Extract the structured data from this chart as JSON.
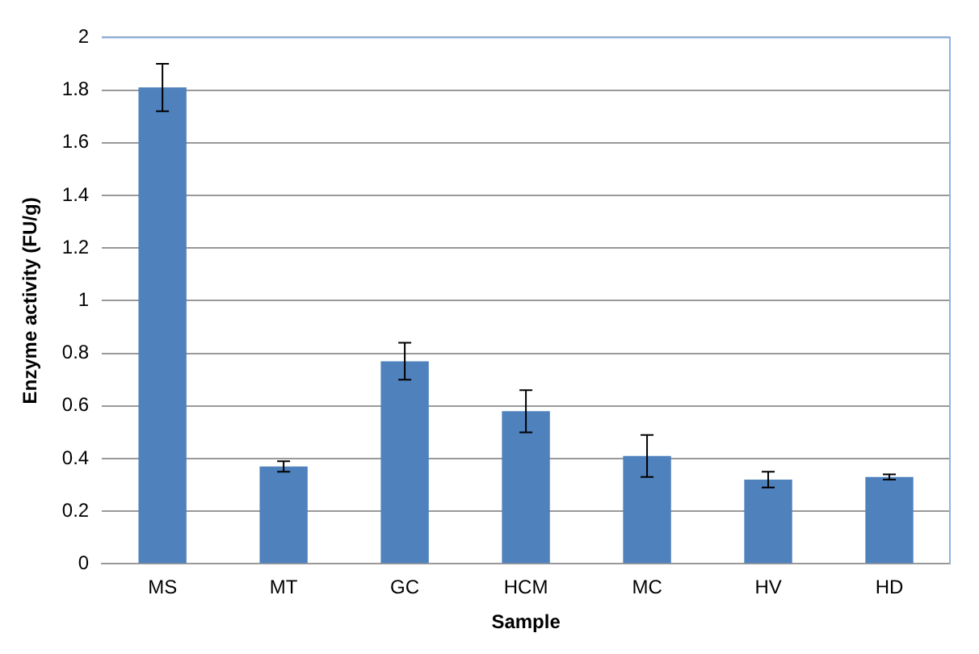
{
  "chart_data": {
    "type": "bar",
    "xlabel": "Sample",
    "ylabel": "Enzyme activity (FU/g)",
    "categories": [
      "MS",
      "MT",
      "GC",
      "HCM",
      "MC",
      "HV",
      "HD"
    ],
    "values": [
      1.81,
      0.37,
      0.77,
      0.58,
      0.41,
      0.32,
      0.33
    ],
    "errors": [
      [
        1.72,
        1.9
      ],
      [
        0.35,
        0.39
      ],
      [
        0.7,
        0.84
      ],
      [
        0.5,
        0.66
      ],
      [
        0.33,
        0.49
      ],
      [
        0.29,
        0.35
      ],
      [
        0.32,
        0.34
      ]
    ],
    "color": "#4f81bd",
    "ylim": [
      0,
      2
    ],
    "yticks": [
      0,
      0.2,
      0.4,
      0.6,
      0.8,
      1,
      1.2,
      1.4,
      1.6,
      1.8,
      2
    ],
    "grid": "y",
    "legend": false
  }
}
